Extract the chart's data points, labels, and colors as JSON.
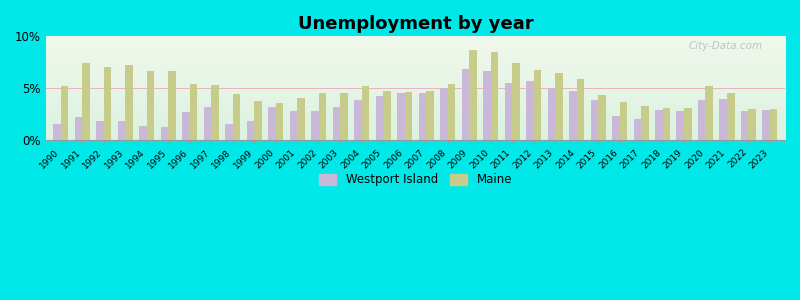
{
  "title": "Unemployment by year",
  "years": [
    1990,
    1991,
    1992,
    1993,
    1994,
    1995,
    1996,
    1997,
    1998,
    1999,
    2000,
    2001,
    2002,
    2003,
    2004,
    2005,
    2006,
    2007,
    2008,
    2009,
    2010,
    2011,
    2012,
    2013,
    2014,
    2015,
    2016,
    2017,
    2018,
    2019,
    2020,
    2021,
    2022,
    2023
  ],
  "westport_island": [
    1.5,
    2.2,
    1.8,
    1.8,
    1.3,
    1.2,
    2.7,
    3.2,
    1.5,
    1.8,
    3.2,
    2.8,
    2.8,
    3.2,
    3.8,
    4.2,
    4.5,
    4.5,
    5.0,
    6.8,
    6.6,
    5.5,
    5.7,
    5.0,
    4.7,
    3.8,
    2.3,
    2.0,
    2.9,
    2.8,
    3.8,
    3.9,
    2.8,
    2.9
  ],
  "maine": [
    5.2,
    7.4,
    7.0,
    7.2,
    6.6,
    6.6,
    5.4,
    5.3,
    4.4,
    3.7,
    3.5,
    4.0,
    4.5,
    4.5,
    5.2,
    4.7,
    4.6,
    4.7,
    5.4,
    8.6,
    8.5,
    7.4,
    6.7,
    6.4,
    5.9,
    4.3,
    3.6,
    3.3,
    3.1,
    3.1,
    5.2,
    4.5,
    3.0,
    3.0
  ],
  "westport_color": "#c9b8d8",
  "maine_color": "#c8cc8a",
  "outer_background": "#00e8e8",
  "ylim": [
    0,
    10
  ],
  "ytick_labels": [
    "0%",
    "5%",
    "10%"
  ],
  "bar_width": 0.35,
  "title_fontsize": 13,
  "watermark_text": "City-Data.com"
}
